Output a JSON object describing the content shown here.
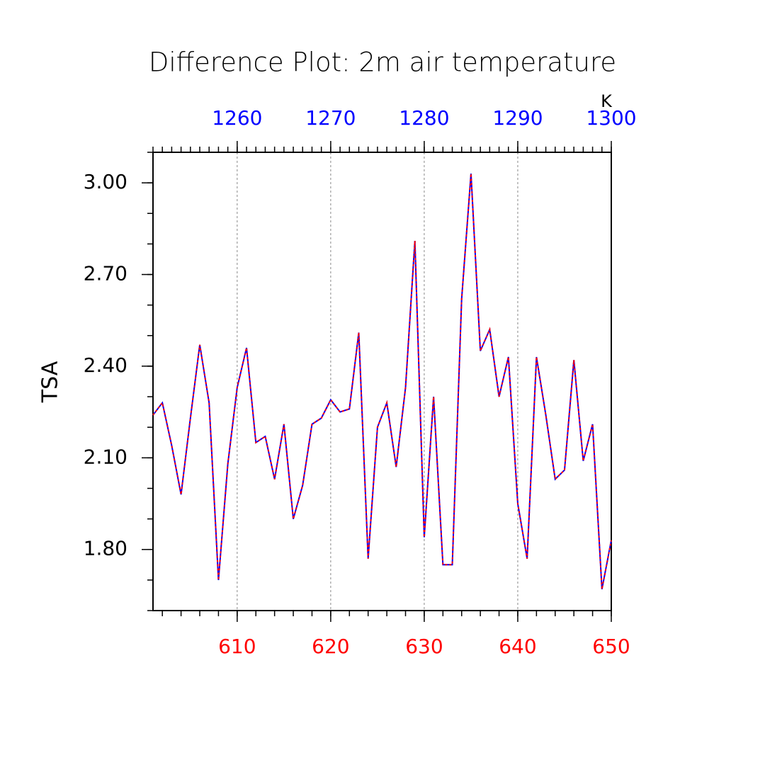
{
  "chart_data": {
    "type": "line",
    "title": "Difference Plot: 2m air temperature",
    "ylabel": "TSA",
    "x2label": "K",
    "x": [
      601,
      602,
      603,
      604,
      605,
      606,
      607,
      608,
      609,
      610,
      611,
      612,
      613,
      614,
      615,
      616,
      617,
      618,
      619,
      620,
      621,
      622,
      623,
      624,
      625,
      626,
      627,
      628,
      629,
      630,
      631,
      632,
      633,
      634,
      635,
      636,
      637,
      638,
      639,
      640,
      641,
      642,
      643,
      644,
      645,
      646,
      647,
      648,
      649,
      650
    ],
    "series": [
      {
        "color": "#0000ff",
        "dash": false,
        "values": [
          2.24,
          2.28,
          2.14,
          1.98,
          2.23,
          2.47,
          2.28,
          1.7,
          2.08,
          2.33,
          2.46,
          2.15,
          2.17,
          2.03,
          2.21,
          1.9,
          2.01,
          2.21,
          2.23,
          2.29,
          2.25,
          2.26,
          2.51,
          1.77,
          2.2,
          2.28,
          2.07,
          2.33,
          2.81,
          1.84,
          2.3,
          1.75,
          1.75,
          2.62,
          3.03,
          2.45,
          2.52,
          2.3,
          2.43,
          1.95,
          1.77,
          2.43,
          2.24,
          2.03,
          2.06,
          2.42,
          2.09,
          2.21,
          1.67,
          1.83
        ]
      },
      {
        "color": "#ff0000",
        "dash": true,
        "values": [
          2.24,
          2.28,
          2.14,
          1.98,
          2.23,
          2.47,
          2.28,
          1.7,
          2.08,
          2.33,
          2.46,
          2.15,
          2.17,
          2.03,
          2.21,
          1.9,
          2.01,
          2.21,
          2.23,
          2.29,
          2.25,
          2.26,
          2.51,
          1.77,
          2.2,
          2.28,
          2.07,
          2.33,
          2.81,
          1.84,
          2.3,
          1.75,
          1.75,
          2.62,
          3.03,
          2.45,
          2.52,
          2.3,
          2.43,
          1.95,
          1.77,
          2.43,
          2.24,
          2.03,
          2.06,
          2.42,
          2.09,
          2.21,
          1.67,
          1.83
        ]
      }
    ],
    "xlim": [
      601,
      650
    ],
    "xticks": [
      610,
      620,
      630,
      640,
      650
    ],
    "xtick_color": "#ff0000",
    "x2lim": [
      1251,
      1300
    ],
    "x2ticks": [
      1260,
      1270,
      1280,
      1290,
      1300
    ],
    "x2tick_color": "#0000ff",
    "x2grid": true,
    "ylim": [
      1.6,
      3.1
    ],
    "yticks": [
      {
        "value": 1.8,
        "label": "1.80"
      },
      {
        "value": 2.1,
        "label": "2.10"
      },
      {
        "value": 2.4,
        "label": "2.40"
      },
      {
        "value": 2.7,
        "label": "2.70"
      },
      {
        "value": 3.0,
        "label": "3.00"
      }
    ]
  }
}
